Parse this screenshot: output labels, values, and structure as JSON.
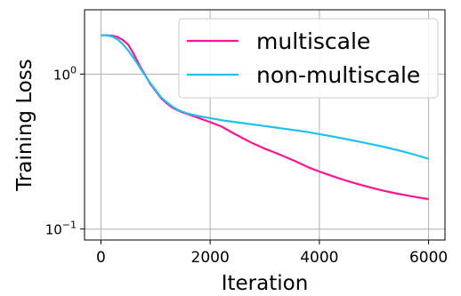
{
  "chart_data": {
    "type": "line",
    "xlabel": "Iteration",
    "ylabel": "Training Loss",
    "xlim": [
      -300,
      6300
    ],
    "ylim": [
      0.085,
      2.6
    ],
    "yscale": "log",
    "grid": true,
    "legend": "top-right",
    "x_ticks": [
      {
        "value": 0,
        "label": "0"
      },
      {
        "value": 2000,
        "label": "2000"
      },
      {
        "value": 4000,
        "label": "4000"
      },
      {
        "value": 6000,
        "label": "6000"
      }
    ],
    "y_ticks": [
      {
        "value": 1,
        "base": "10",
        "exp": "0"
      },
      {
        "value": 0.1,
        "base": "10",
        "exp": "−1"
      }
    ],
    "series": [
      {
        "name": "multiscale",
        "color": "#ff1493",
        "x": [
          0,
          100,
          200,
          300,
          400,
          500,
          600,
          700,
          800,
          900,
          1000,
          1100,
          1200,
          1300,
          1400,
          1500,
          1600,
          1800,
          2000,
          2200,
          2400,
          2600,
          2800,
          3000,
          3200,
          3400,
          3600,
          3800,
          4000,
          4200,
          4400,
          4600,
          4800,
          5000,
          5200,
          5400,
          5600,
          5800,
          6000
        ],
        "y": [
          1.78,
          1.78,
          1.77,
          1.74,
          1.66,
          1.55,
          1.35,
          1.15,
          1.0,
          0.87,
          0.78,
          0.7,
          0.65,
          0.61,
          0.585,
          0.565,
          0.55,
          0.52,
          0.49,
          0.46,
          0.42,
          0.385,
          0.355,
          0.33,
          0.31,
          0.29,
          0.27,
          0.25,
          0.235,
          0.222,
          0.21,
          0.2,
          0.191,
          0.183,
          0.176,
          0.17,
          0.165,
          0.16,
          0.156
        ]
      },
      {
        "name": "non-multiscale",
        "color": "#1ec0f0",
        "x": [
          0,
          100,
          200,
          300,
          400,
          500,
          600,
          700,
          800,
          900,
          1000,
          1100,
          1200,
          1300,
          1400,
          1500,
          1600,
          1800,
          2000,
          2200,
          2400,
          2600,
          2800,
          3000,
          3200,
          3400,
          3600,
          3800,
          4000,
          4200,
          4400,
          4600,
          4800,
          5000,
          5200,
          5400,
          5600,
          5800,
          6000
        ],
        "y": [
          1.78,
          1.78,
          1.75,
          1.68,
          1.56,
          1.42,
          1.27,
          1.12,
          0.99,
          0.88,
          0.79,
          0.71,
          0.66,
          0.62,
          0.59,
          0.57,
          0.555,
          0.535,
          0.52,
          0.505,
          0.493,
          0.483,
          0.472,
          0.462,
          0.452,
          0.442,
          0.432,
          0.422,
          0.41,
          0.398,
          0.386,
          0.374,
          0.362,
          0.35,
          0.338,
          0.325,
          0.312,
          0.298,
          0.284
        ]
      }
    ]
  }
}
